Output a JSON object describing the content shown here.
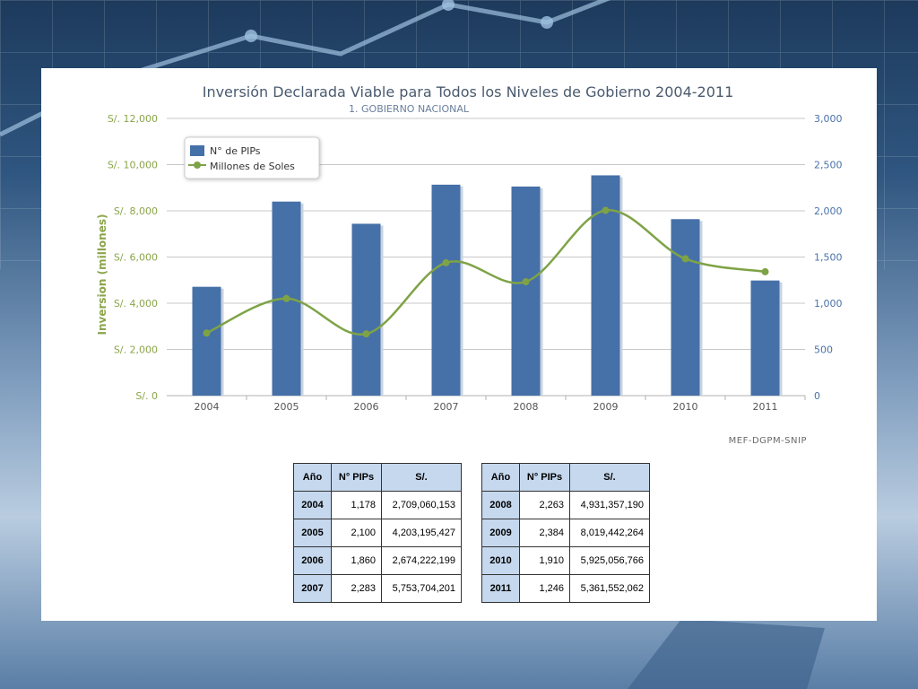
{
  "colors": {
    "bar": "#4670a8",
    "line": "#7ea346",
    "left_axis_text": "#8aa54a",
    "right_axis_text": "#4a72a8",
    "title": "#4a5a6e",
    "subtitle": "#6a7f9c",
    "grid": "#c8c8c8"
  },
  "chart_data": {
    "type": "bar",
    "title": "Inversión Declarada Viable para Todos los Niveles de Gobierno 2004-2011",
    "subtitle": "1. GOBIERNO NACIONAL",
    "categories": [
      "2004",
      "2005",
      "2006",
      "2007",
      "2008",
      "2009",
      "2010",
      "2011"
    ],
    "ylabel": "Inversion (millones)",
    "left_axis": {
      "ylim": [
        0,
        12000
      ],
      "ticks": [
        "S/. 0",
        "S/. 2,000",
        "S/. 4,000",
        "S/. 6,000",
        "S/. 8,000",
        "S/. 10,000",
        "S/. 12,000"
      ]
    },
    "right_axis": {
      "ylim": [
        0,
        3000
      ],
      "ticks": [
        "0",
        "500",
        "1,000",
        "1,500",
        "2,000",
        "2,500",
        "3,000"
      ]
    },
    "series": [
      {
        "name": "N° de PIPs",
        "type": "bar",
        "axis": "right",
        "values": [
          1178,
          2100,
          1860,
          2283,
          2263,
          2384,
          1910,
          1246
        ]
      },
      {
        "name": "Millones de Soles",
        "type": "line",
        "axis": "left",
        "values": [
          2709,
          4203,
          2674,
          5754,
          4931,
          8019,
          5925,
          5362
        ]
      }
    ],
    "grid": true,
    "legend": "top-left",
    "source": "MEF-DGPM-SNIP"
  },
  "table": {
    "headers": [
      "Año",
      "N° PIPs",
      "S/."
    ],
    "left_rows": [
      [
        "2004",
        "1,178",
        "2,709,060,153"
      ],
      [
        "2005",
        "2,100",
        "4,203,195,427"
      ],
      [
        "2006",
        "1,860",
        "2,674,222,199"
      ],
      [
        "2007",
        "2,283",
        "5,753,704,201"
      ]
    ],
    "right_rows": [
      [
        "2008",
        "2,263",
        "4,931,357,190"
      ],
      [
        "2009",
        "2,384",
        "8,019,442,264"
      ],
      [
        "2010",
        "1,910",
        "5,925,056,766"
      ],
      [
        "2011",
        "1,246",
        "5,361,552,062"
      ]
    ]
  }
}
